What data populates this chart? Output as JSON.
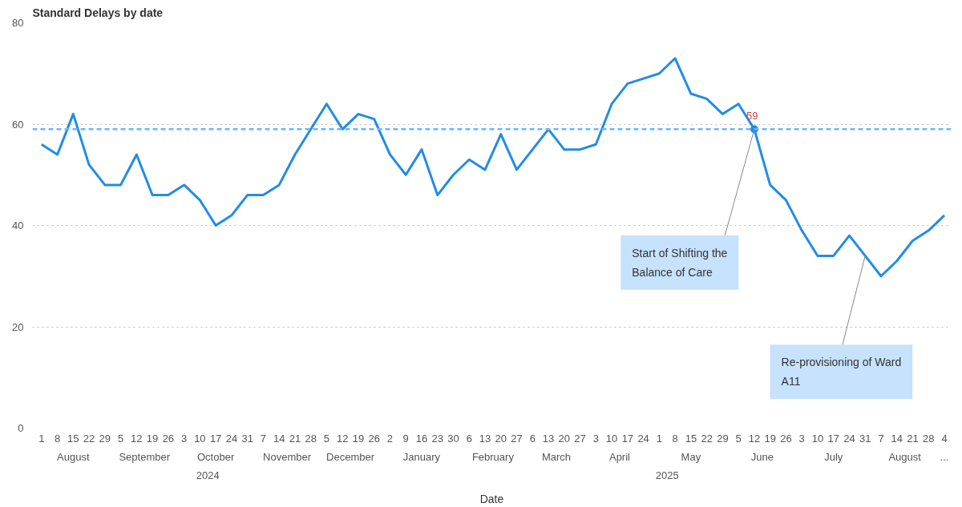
{
  "chart_data": {
    "type": "line",
    "title": "Standard Delays by date",
    "xlabel": "Date",
    "x": [
      "2024-08-01",
      "2024-08-08",
      "2024-08-15",
      "2024-08-22",
      "2024-08-29",
      "2024-09-05",
      "2024-09-12",
      "2024-09-19",
      "2024-09-26",
      "2024-10-03",
      "2024-10-10",
      "2024-10-17",
      "2024-10-24",
      "2024-10-31",
      "2024-11-07",
      "2024-11-14",
      "2024-11-21",
      "2024-11-28",
      "2024-12-05",
      "2024-12-12",
      "2024-12-19",
      "2024-12-26",
      "2025-01-02",
      "2025-01-09",
      "2025-01-16",
      "2025-01-23",
      "2025-01-30",
      "2025-02-06",
      "2025-02-13",
      "2025-02-20",
      "2025-02-27",
      "2025-03-06",
      "2025-03-13",
      "2025-03-20",
      "2025-03-27",
      "2025-04-03",
      "2025-04-10",
      "2025-04-17",
      "2025-04-24",
      "2025-05-01",
      "2025-05-08",
      "2025-05-15",
      "2025-05-22",
      "2025-05-29",
      "2025-06-05",
      "2025-06-12",
      "2025-06-19",
      "2025-06-26",
      "2025-07-03",
      "2025-07-10",
      "2025-07-17",
      "2025-07-24",
      "2025-07-31",
      "2025-08-07",
      "2025-08-14",
      "2025-08-21",
      "2025-08-28",
      "2025-09-04"
    ],
    "series": [
      {
        "color": "#218ce8",
        "values": [
          56,
          54,
          62,
          52,
          48,
          48,
          54,
          46,
          46,
          48,
          45,
          40,
          42,
          46,
          46,
          48,
          54,
          59,
          64,
          59,
          62,
          61,
          54,
          50,
          55,
          46,
          50,
          53,
          51,
          58,
          51,
          55,
          59,
          55,
          55,
          56,
          64,
          68,
          69,
          70,
          73,
          66,
          65,
          62,
          64,
          59,
          48,
          45,
          39,
          34,
          34,
          38,
          34,
          30,
          33,
          37,
          39,
          42
        ]
      }
    ],
    "xlim": [
      "2024-07-28",
      "2025-09-07"
    ],
    "xticks": [
      {
        "value": "2024-08-01",
        "label": "1"
      },
      {
        "value": "2024-08-08",
        "label": "8"
      },
      {
        "value": "2024-08-15",
        "label": "15"
      },
      {
        "value": "2024-08-22",
        "label": "22"
      },
      {
        "value": "2024-08-29",
        "label": "29"
      },
      {
        "value": "2024-09-05",
        "label": "5"
      },
      {
        "value": "2024-09-12",
        "label": "12"
      },
      {
        "value": "2024-09-19",
        "label": "19"
      },
      {
        "value": "2024-09-26",
        "label": "26"
      },
      {
        "value": "2024-10-03",
        "label": "3"
      },
      {
        "value": "2024-10-10",
        "label": "10"
      },
      {
        "value": "2024-10-17",
        "label": "17"
      },
      {
        "value": "2024-10-24",
        "label": "24"
      },
      {
        "value": "2024-10-31",
        "label": "31"
      },
      {
        "value": "2024-11-07",
        "label": "7"
      },
      {
        "value": "2024-11-14",
        "label": "14"
      },
      {
        "value": "2024-11-21",
        "label": "21"
      },
      {
        "value": "2024-11-28",
        "label": "28"
      },
      {
        "value": "2024-12-05",
        "label": "5"
      },
      {
        "value": "2024-12-12",
        "label": "12"
      },
      {
        "value": "2024-12-19",
        "label": "19"
      },
      {
        "value": "2024-12-26",
        "label": "26"
      },
      {
        "value": "2025-01-02",
        "label": "2"
      },
      {
        "value": "2025-01-09",
        "label": "9"
      },
      {
        "value": "2025-01-16",
        "label": "16"
      },
      {
        "value": "2025-01-23",
        "label": "23"
      },
      {
        "value": "2025-01-30",
        "label": "30"
      },
      {
        "value": "2025-02-06",
        "label": "6"
      },
      {
        "value": "2025-02-13",
        "label": "13"
      },
      {
        "value": "2025-02-20",
        "label": "20"
      },
      {
        "value": "2025-02-27",
        "label": "27"
      },
      {
        "value": "2025-03-06",
        "label": "6"
      },
      {
        "value": "2025-03-13",
        "label": "13"
      },
      {
        "value": "2025-03-20",
        "label": "20"
      },
      {
        "value": "2025-03-27",
        "label": "27"
      },
      {
        "value": "2025-04-03",
        "label": "3"
      },
      {
        "value": "2025-04-10",
        "label": "10"
      },
      {
        "value": "2025-04-17",
        "label": "17"
      },
      {
        "value": "2025-04-24",
        "label": "24"
      },
      {
        "value": "2025-05-01",
        "label": "1"
      },
      {
        "value": "2025-05-08",
        "label": "8"
      },
      {
        "value": "2025-05-15",
        "label": "15"
      },
      {
        "value": "2025-05-22",
        "label": "22"
      },
      {
        "value": "2025-05-29",
        "label": "29"
      },
      {
        "value": "2025-06-05",
        "label": "5"
      },
      {
        "value": "2025-06-12",
        "label": "12"
      },
      {
        "value": "2025-06-19",
        "label": "19"
      },
      {
        "value": "2025-06-26",
        "label": "26"
      },
      {
        "value": "2025-07-03",
        "label": "3"
      },
      {
        "value": "2025-07-10",
        "label": "10"
      },
      {
        "value": "2025-07-17",
        "label": "17"
      },
      {
        "value": "2025-07-24",
        "label": "24"
      },
      {
        "value": "2025-07-31",
        "label": "31"
      },
      {
        "value": "2025-08-07",
        "label": "7"
      },
      {
        "value": "2025-08-14",
        "label": "14"
      },
      {
        "value": "2025-08-21",
        "label": "21"
      },
      {
        "value": "2025-08-28",
        "label": "28"
      },
      {
        "value": "2025-09-04",
        "label": "4"
      }
    ],
    "ylim": [
      0,
      80
    ],
    "yticks": [
      0,
      20,
      40,
      60,
      80
    ],
    "grid": "y",
    "marker": "none",
    "line_style": "solid",
    "ref_lines": [
      {
        "axis": "y",
        "value": 59,
        "color": "#6fb6f5",
        "line_style": "dashed"
      }
    ],
    "annotations": [
      "August",
      "September",
      "October",
      "November",
      "December",
      "January",
      "February",
      "March",
      "April",
      "May",
      "June",
      "July",
      "August",
      "...",
      "2024",
      "2025",
      {
        "text": "59",
        "x": "2025-06-12",
        "y": 59
      },
      {
        "text": "Start of Shifting the Balance of Care",
        "x": "2025-06-12",
        "y": 59
      },
      {
        "text": "Re-provisioning of Ward A11",
        "x": "2025-07-31",
        "y": 34
      }
    ]
  }
}
